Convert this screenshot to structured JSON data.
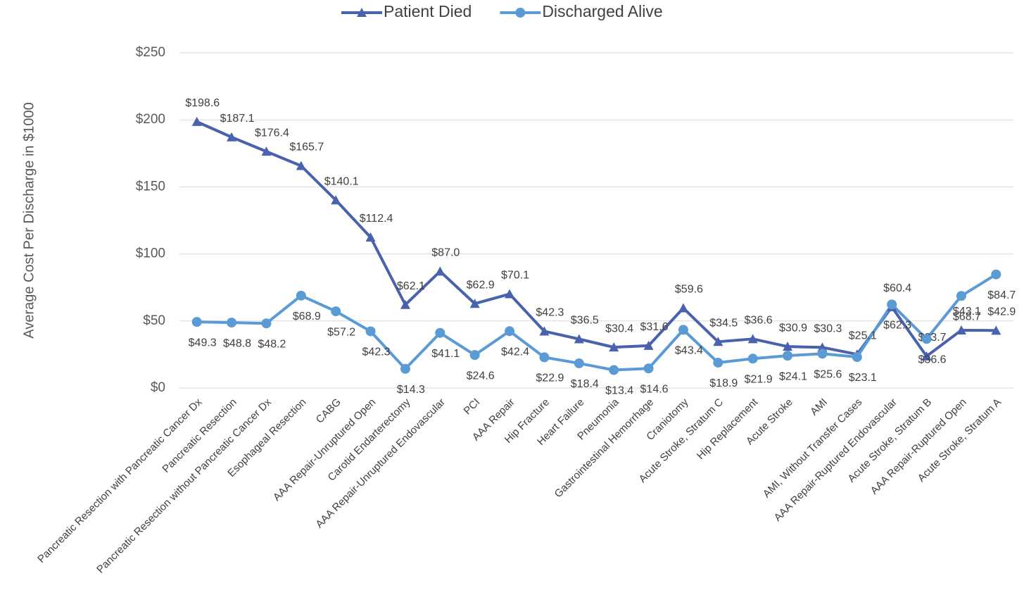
{
  "chart_data": {
    "type": "line",
    "y_axis_label": "Average Cost Per Discharge in $1000",
    "categories": [
      "Pancreatic Resection with Pancreatic Cancer Dx",
      "Pancreatic Resection",
      "Pancreatic Resection without Pancreatic Cancer Dx",
      "Esophageal Resection",
      "CABG",
      "AAA Repair-Unruptured Open",
      "Carotid Endarterectomy",
      "AAA Repair-Unruptured Endovascular",
      "PCI",
      "AAA Repair",
      "Hip Fracture",
      "Heart Failure",
      "Pneumonia",
      "Gastrointestinal Hemorrhage",
      "Craniotomy",
      "Acute Stroke, Stratum C",
      "Hip Replacement",
      "Acute Stroke",
      "AMI",
      "AMI, Without Transfer Cases",
      "AAA Repair-Ruptured Endovascular",
      "Acute Stroke, Stratum B",
      "AAA Repair-Ruptured Open",
      "Acute Stroke, Stratum A"
    ],
    "series": [
      {
        "name": "Patient Died",
        "color": "#4862ad",
        "marker": "triangle",
        "values": [
          198.6,
          187.1,
          176.4,
          165.7,
          140.1,
          112.4,
          62.1,
          87.0,
          62.9,
          70.1,
          42.3,
          36.5,
          30.4,
          31.6,
          59.6,
          34.5,
          36.6,
          30.9,
          30.3,
          25.1,
          60.4,
          23.7,
          43.1,
          42.9
        ],
        "value_labels": [
          "$198.6",
          "$187.1",
          "$176.4",
          "$165.7",
          "$140.1",
          "$112.4",
          "$62.1",
          "$87.0",
          "$62.9",
          "$70.1",
          "$42.3",
          "$36.5",
          "$30.4",
          "$31.6",
          "$59.6",
          "$34.5",
          "$36.6",
          "$30.9",
          "$30.3",
          "$25.1",
          "$60.4",
          "$23.7",
          "$43.1",
          "$42.9"
        ]
      },
      {
        "name": "Discharged Alive",
        "color": "#5b9bd5",
        "marker": "circle",
        "values": [
          49.3,
          48.8,
          48.2,
          68.9,
          57.2,
          42.3,
          14.3,
          41.1,
          24.6,
          42.4,
          22.9,
          18.4,
          13.4,
          14.6,
          43.4,
          18.9,
          21.9,
          24.1,
          25.6,
          23.1,
          62.3,
          36.6,
          68.7,
          84.7
        ],
        "value_labels": [
          "$49.3",
          "$48.8",
          "$48.2",
          "$68.9",
          "$57.2",
          "$42.3",
          "$14.3",
          "$41.1",
          "$24.6",
          "$42.4",
          "$22.9",
          "$18.4",
          "$13.4",
          "$14.6",
          "$43.4",
          "$18.9",
          "$21.9",
          "$24.1",
          "$25.6",
          "$23.1",
          "$62.3",
          "$36.6",
          "$68.7",
          "$84.7"
        ]
      }
    ],
    "ylim": [
      0,
      250
    ],
    "yticks": [
      {
        "value": 0,
        "label": "$0"
      },
      {
        "value": 50,
        "label": "$50"
      },
      {
        "value": 100,
        "label": "$100"
      },
      {
        "value": 150,
        "label": "$150"
      },
      {
        "value": 200,
        "label": "$200"
      },
      {
        "value": 250,
        "label": "$250"
      }
    ],
    "grid": true,
    "legend": "top"
  }
}
